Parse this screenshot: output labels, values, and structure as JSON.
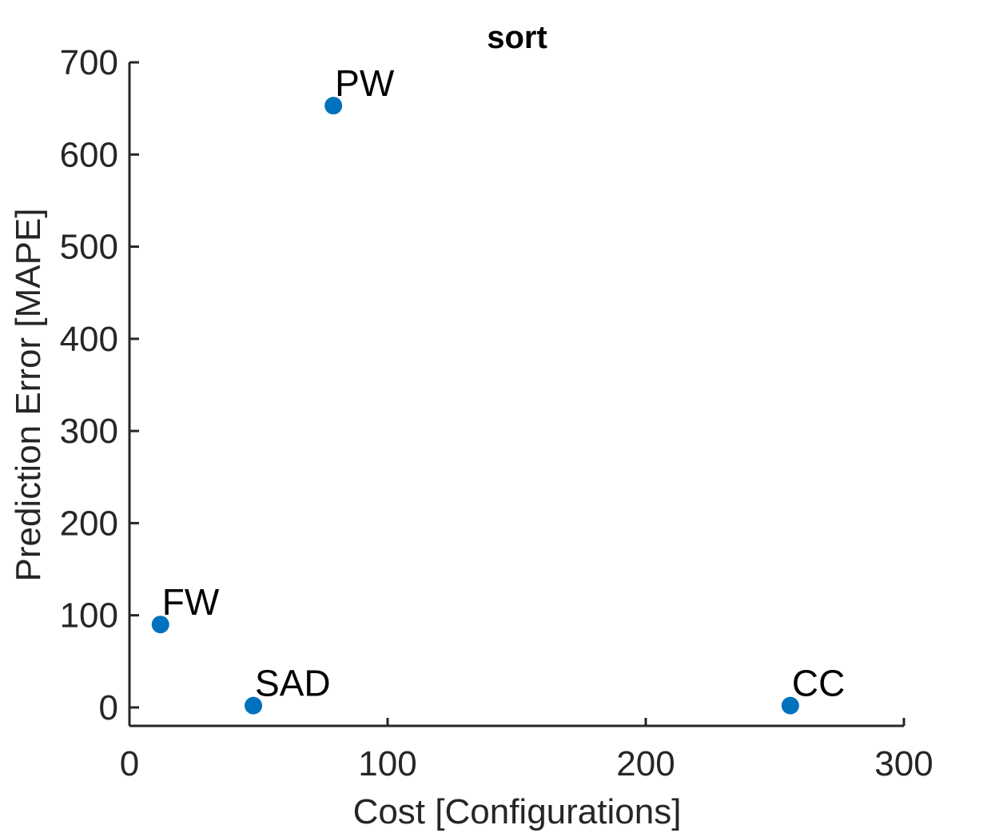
{
  "chart_data": {
    "type": "scatter",
    "title": "sort",
    "xlabel": "Cost [Configurations]",
    "ylabel": "Prediction Error [MAPE]",
    "xlim": [
      0,
      300
    ],
    "ylim": [
      -20,
      700
    ],
    "xticks": [
      0,
      100,
      200,
      300
    ],
    "yticks": [
      0,
      100,
      200,
      300,
      400,
      500,
      600,
      700
    ],
    "marker_color": "#0072BD",
    "grid": false,
    "points": [
      {
        "label": "PW",
        "x": 79,
        "y": 653
      },
      {
        "label": "FW",
        "x": 12,
        "y": 90
      },
      {
        "label": "SAD",
        "x": 48,
        "y": 2
      },
      {
        "label": "CC",
        "x": 256,
        "y": 2
      }
    ]
  }
}
